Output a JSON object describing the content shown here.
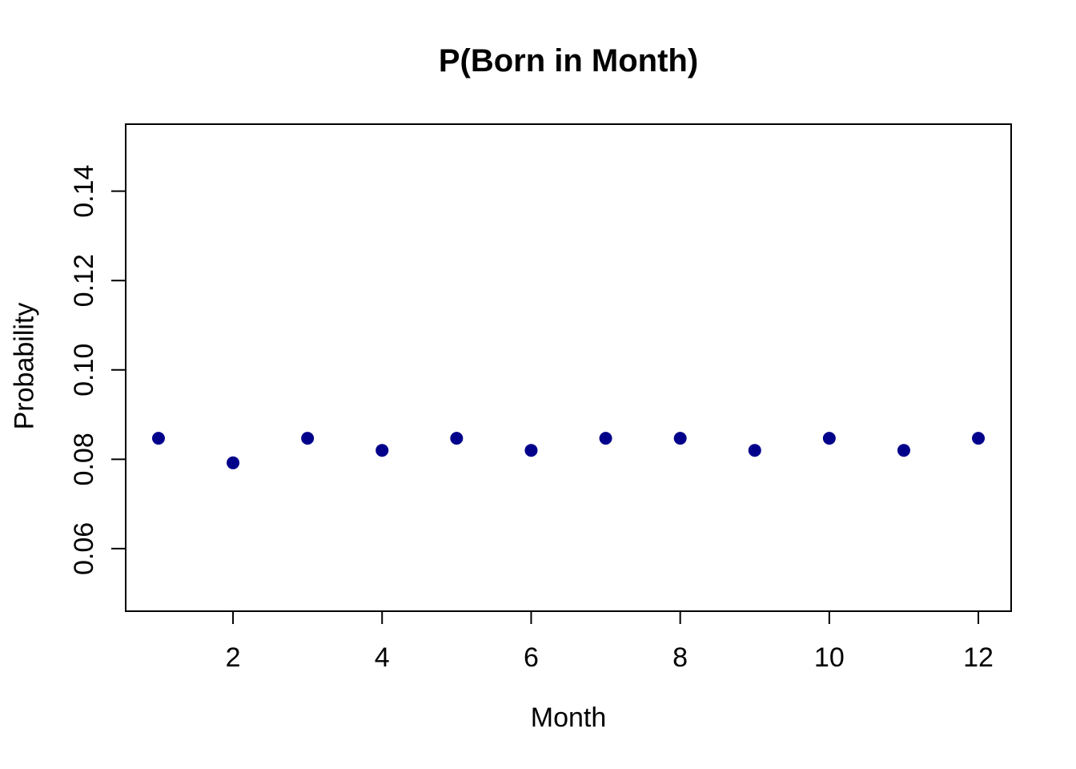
{
  "chart_data": {
    "type": "scatter",
    "title": "P(Born in Month)",
    "xlabel": "Month",
    "ylabel": "Probability",
    "x": [
      1,
      2,
      3,
      4,
      5,
      6,
      7,
      8,
      9,
      10,
      11,
      12
    ],
    "y": [
      0.0847,
      0.0792,
      0.0847,
      0.082,
      0.0847,
      0.082,
      0.0847,
      0.0847,
      0.082,
      0.0847,
      0.082,
      0.0847
    ],
    "x_tick_labels": [
      "2",
      "4",
      "6",
      "8",
      "10",
      "12"
    ],
    "x_tick_values": [
      2,
      4,
      6,
      8,
      10,
      12
    ],
    "y_tick_labels": [
      "0.06",
      "0.08",
      "0.10",
      "0.12",
      "0.14"
    ],
    "y_tick_values": [
      0.06,
      0.08,
      0.1,
      0.12,
      0.14
    ],
    "xlim": [
      0.56,
      12.44
    ],
    "ylim": [
      0.046,
      0.155
    ],
    "grid": false,
    "legend": null,
    "point_color": "#00008B",
    "axis_color": "#000000",
    "background_color": "#FFFFFF"
  }
}
